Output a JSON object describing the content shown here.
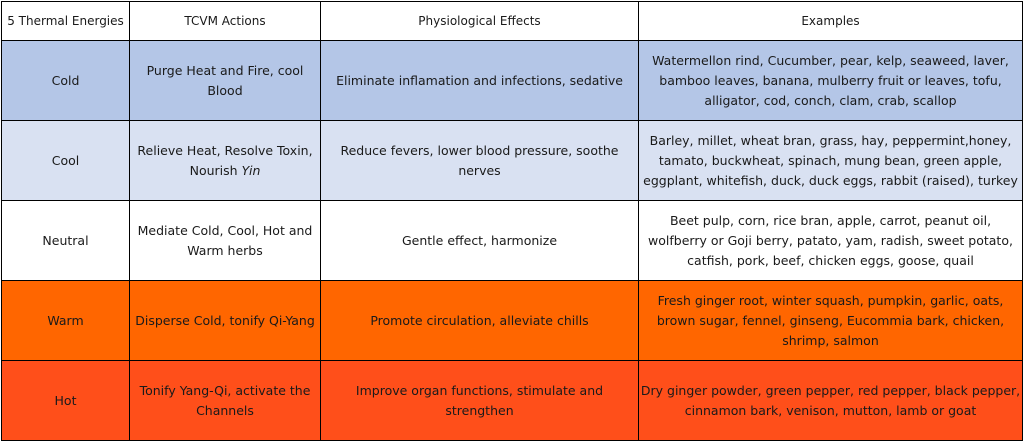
{
  "columns": [
    "5 Thermal Energies",
    "TCVM Actions",
    "Physiological Effects",
    "Examples"
  ],
  "rows": [
    {
      "energy": "Cold",
      "actions": "Purge Heat and Fire, cool Blood",
      "actions_italic": "",
      "effects": "Eliminate inflamation and infections, sedative",
      "examples": "Watermellon rind, Cucumber, pear, kelp, seaweed, laver, bamboo leaves, banana, mulberry fruit or leaves, tofu, alligator, cod, conch, clam, crab, scallop"
    },
    {
      "energy": "Cool",
      "actions": "Relieve Heat, Resolve Toxin, Nourish ",
      "actions_italic": "Yin",
      "effects": "Reduce fevers, lower blood pressure, soothe nerves",
      "examples": "Barley, millet, wheat bran, grass, hay, peppermint,honey, tamato, buckwheat, spinach, mung bean, green apple, eggplant, whitefish, duck, duck eggs, rabbit (raised), turkey"
    },
    {
      "energy": "Neutral",
      "actions": "Mediate Cold, Cool, Hot and Warm herbs",
      "actions_italic": "",
      "effects": "Gentle effect, harmonize",
      "examples": "Beet pulp, corn, rice bran, apple, carrot, peanut oil, wolfberry or Goji berry, patato, yam, radish, sweet potato, catfish, pork, beef, chicken eggs, goose, quail"
    },
    {
      "energy": "Warm",
      "actions": "Disperse Cold, tonify Qi-Yang",
      "actions_italic": "",
      "effects": "Promote circulation, alleviate chills",
      "examples": "Fresh ginger root, winter squash, pumpkin, garlic, oats, brown sugar, fennel, ginseng, Eucommia bark, chicken, shrimp, salmon"
    },
    {
      "energy": "Hot",
      "actions": "Tonify Yang-Qi, activate the Channels",
      "actions_italic": "",
      "effects": "Improve organ functions, stimulate and strengthen",
      "examples": "Dry ginger powder, green pepper, red pepper, black pepper, cinnamon bark, venison, mutton, lamb or goat"
    }
  ],
  "colors": {
    "cold": "#b4c6e7",
    "cool": "#d9e1f2",
    "neutral": "#ffffff",
    "warm": "#ff6600",
    "hot": "#ff4f1a"
  }
}
